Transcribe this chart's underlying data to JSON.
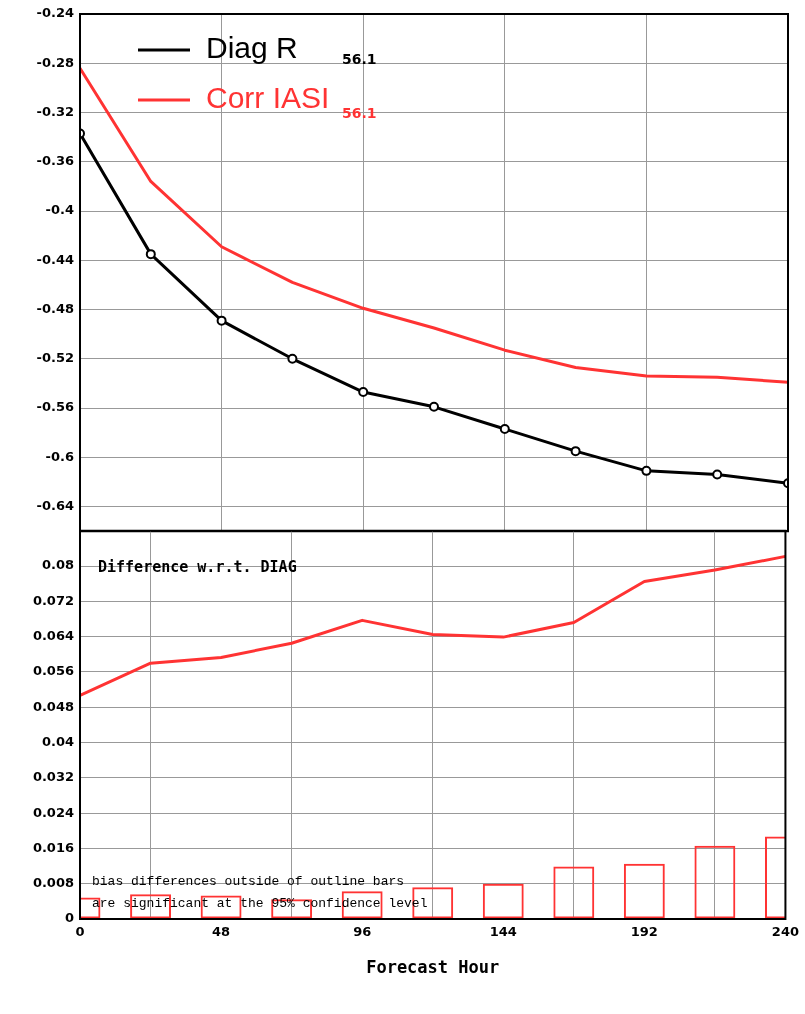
{
  "chart_data": [
    {
      "type": "line",
      "x": [
        0,
        24,
        48,
        72,
        96,
        120,
        144,
        168,
        192,
        216,
        240
      ],
      "xlim": [
        0,
        240
      ],
      "xticks": [
        0,
        48,
        96,
        144,
        192,
        240
      ],
      "ylim": [
        -0.66,
        -0.24
      ],
      "yticks": [
        -0.64,
        -0.6,
        -0.56,
        -0.52,
        -0.48,
        -0.44,
        -0.4,
        -0.36,
        -0.32,
        -0.28,
        -0.24
      ],
      "tick_labels": "y",
      "grid": true,
      "legend": "top left",
      "annotations": [
        "56.1",
        "56.1"
      ],
      "series": [
        {
          "name": "Diag R",
          "color": "#000000",
          "marker": "circle",
          "values": [
            -0.337,
            -0.435,
            -0.489,
            -0.52,
            -0.547,
            -0.559,
            -0.577,
            -0.595,
            -0.611,
            -0.614,
            -0.621
          ]
        },
        {
          "name": "Corr IASI",
          "color": "#ff3333",
          "marker": "none",
          "values": [
            -0.284,
            -0.376,
            -0.429,
            -0.458,
            -0.479,
            -0.495,
            -0.513,
            -0.527,
            -0.534,
            -0.535,
            -0.539
          ]
        }
      ]
    },
    {
      "type": "line",
      "x": [
        0,
        24,
        48,
        72,
        96,
        120,
        144,
        168,
        192,
        216,
        240
      ],
      "xlim": [
        0,
        240
      ],
      "xticks": [
        0,
        48,
        96,
        144,
        192,
        240
      ],
      "ylim": [
        0,
        0.088
      ],
      "yticks": [
        0,
        0.008,
        0.016,
        0.024,
        0.032,
        0.04,
        0.048,
        0.056,
        0.064,
        0.072,
        0.08
      ],
      "xlabel": "Forecast Hour",
      "grid": true,
      "annotations": [
        "Difference w.r.t. DIAG",
        "bias differences outside of outline bars",
        "are significant at the 95% confidence level"
      ],
      "series": [
        {
          "type": "bar",
          "color": "#ff3333",
          "values": [
            0.0049,
            0.0056,
            0.0053,
            0.0045,
            0.0063,
            0.0072,
            0.008,
            0.0119,
            0.0125,
            0.0166,
            0.0187
          ]
        },
        {
          "color": "#ff3333",
          "marker": "none",
          "values": [
            0.0507,
            0.058,
            0.0593,
            0.0625,
            0.0677,
            0.0645,
            0.0639,
            0.0672,
            0.0765,
            0.0791,
            0.0822
          ]
        }
      ]
    }
  ]
}
